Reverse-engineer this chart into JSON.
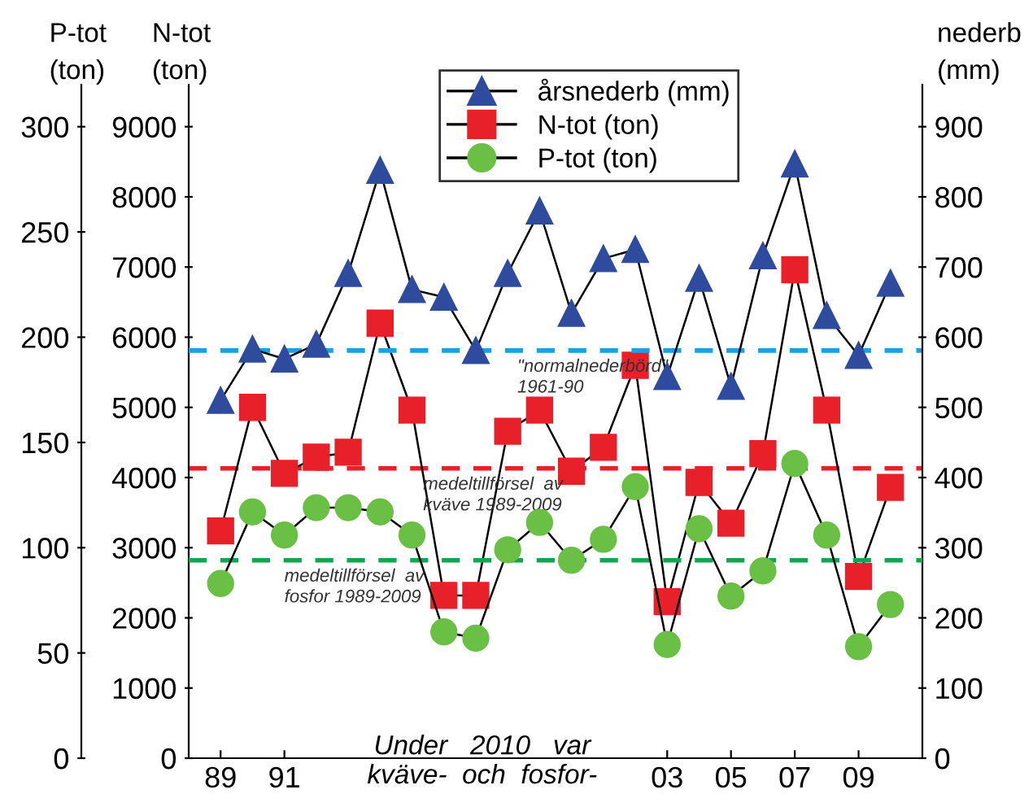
{
  "chart_data": {
    "type": "line",
    "x": [
      1989,
      1990,
      1991,
      1992,
      1993,
      1994,
      1995,
      1996,
      1997,
      1998,
      1999,
      2000,
      2001,
      2002,
      2003,
      2004,
      2005,
      2006,
      2007,
      2008,
      2009,
      2010
    ],
    "series": [
      {
        "name": "årsnederb (mm)",
        "color": "#2e4b9e",
        "marker": "triangle",
        "axis": "y2",
        "values": [
          510,
          583,
          569,
          590,
          691,
          838,
          668,
          657,
          581,
          691,
          780,
          634,
          712,
          725,
          544,
          684,
          530,
          716,
          847,
          631,
          574,
          677
        ]
      },
      {
        "name": "N-tot (ton)",
        "color": "#e8202a",
        "marker": "square",
        "axis": "y",
        "values": [
          3240,
          5000,
          4060,
          4290,
          4360,
          6200,
          4960,
          2320,
          2320,
          4660,
          4960,
          4090,
          4430,
          5600,
          2230,
          3930,
          3350,
          4340,
          6960,
          4960,
          2590,
          3860
        ]
      },
      {
        "name": "P-tot (ton)",
        "color": "#6abf45",
        "marker": "circle",
        "axis": "y3",
        "values": [
          83,
          117,
          106,
          119,
          119,
          117,
          106,
          60,
          57,
          99,
          112,
          94,
          104,
          129,
          54,
          109,
          77,
          89,
          140,
          106,
          53,
          73
        ]
      }
    ],
    "ylabel": "N-tot\n(ton)",
    "y2label": "nederb\n(mm)",
    "y3label": "P-tot\n(ton)",
    "xlim": [
      1988,
      2011
    ],
    "xticks": [
      {
        "value": 1989,
        "label": "89"
      },
      {
        "value": 1991,
        "label": "91"
      },
      {
        "value": 2003,
        "label": "03"
      },
      {
        "value": 2005,
        "label": "05"
      },
      {
        "value": 2007,
        "label": "07"
      },
      {
        "value": 2009,
        "label": "09"
      }
    ],
    "ylim": [
      0,
      9600
    ],
    "yticks": [
      0,
      1000,
      2000,
      3000,
      4000,
      5000,
      6000,
      7000,
      8000,
      9000
    ],
    "y2lim": [
      0,
      960
    ],
    "y2ticks": [
      0,
      100,
      200,
      300,
      400,
      500,
      600,
      700,
      800,
      900
    ],
    "y3lim": [
      0,
      320
    ],
    "y3ticks": [
      0,
      50,
      100,
      150,
      200,
      250,
      300
    ],
    "ref_lines": [
      {
        "axis": "y2",
        "value": 581,
        "label": "\"normalnederbörd\"\n1961-90",
        "color": "#1ba1e2",
        "line_style": "dashed"
      },
      {
        "axis": "y",
        "value": 4130,
        "label": "medeltillförsel  av\nkväve 1989-2009",
        "color": "#e8202a",
        "line_style": "dashed"
      },
      {
        "axis": "y3",
        "value": 94,
        "label": "medeltillförsel  av\nfosfor 1989-2009",
        "color": "#12a650",
        "line_style": "dashed"
      }
    ],
    "annotations": [
      "Under   2010   var\nkväve-  och  fosfor-"
    ],
    "legend": "top",
    "grid": false
  }
}
